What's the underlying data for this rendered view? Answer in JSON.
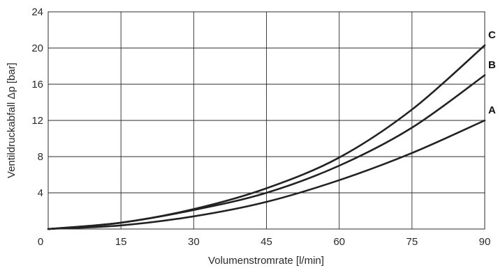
{
  "chart_data": {
    "type": "line",
    "xlabel": "Volumenstromrate [l/min]",
    "ylabel": "Ventildruckabfall Δp [bar]",
    "xlim": [
      0,
      90
    ],
    "ylim": [
      0,
      24
    ],
    "x_ticks": [
      0,
      15,
      30,
      45,
      60,
      75,
      90
    ],
    "y_ticks": [
      4,
      8,
      12,
      16,
      20,
      24
    ],
    "grid": true,
    "series": [
      {
        "name": "A",
        "x": [
          0,
          15,
          30,
          45,
          60,
          75,
          90
        ],
        "y": [
          0,
          0.4,
          1.4,
          3.0,
          5.4,
          8.4,
          12.0
        ]
      },
      {
        "name": "B",
        "x": [
          0,
          15,
          30,
          45,
          60,
          75,
          90
        ],
        "y": [
          0,
          0.7,
          2.1,
          4.0,
          7.0,
          11.2,
          17.0
        ]
      },
      {
        "name": "C",
        "x": [
          0,
          15,
          30,
          45,
          60,
          75,
          90
        ],
        "y": [
          0,
          0.7,
          2.2,
          4.5,
          7.9,
          13.2,
          20.3
        ]
      }
    ],
    "line_color": "#222222",
    "grid_color": "#2b2b2b"
  }
}
